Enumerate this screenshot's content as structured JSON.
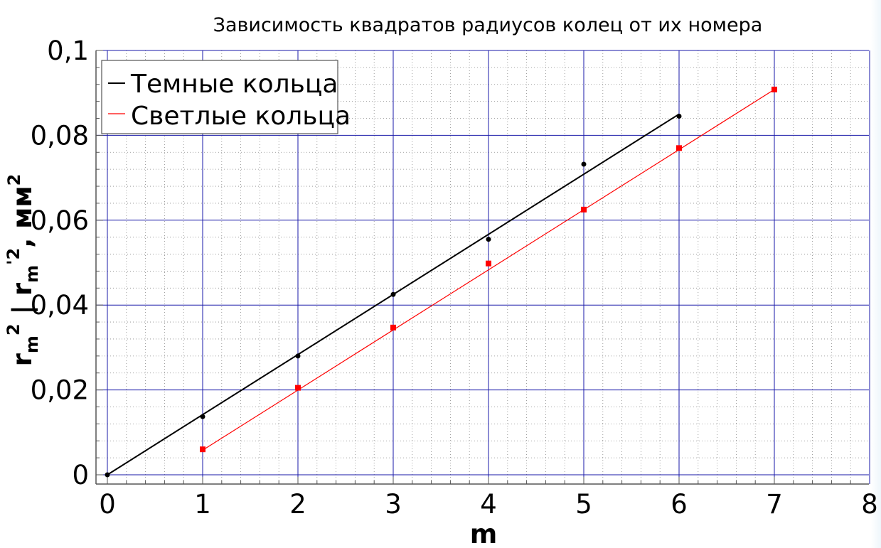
{
  "chart_data": {
    "type": "line",
    "title": "Зависимость квадратов радиусов колец от их номера",
    "xlabel": "m",
    "ylabel": {
      "r1": "r",
      "r1_sub": "m",
      "r1_sup": "2",
      "sep": " | ",
      "r2": "r",
      "r2_sub": "m",
      "r2_sup": "'2",
      "unit": ", мм",
      "unit_sup": "2"
    },
    "xlim": [
      0,
      8
    ],
    "ylim": [
      0,
      0.1
    ],
    "x_ticks": [
      {
        "value": 0,
        "label": "0"
      },
      {
        "value": 1,
        "label": "1"
      },
      {
        "value": 2,
        "label": "2"
      },
      {
        "value": 3,
        "label": "3"
      },
      {
        "value": 4,
        "label": "4"
      },
      {
        "value": 5,
        "label": "5"
      },
      {
        "value": 6,
        "label": "6"
      },
      {
        "value": 7,
        "label": "7"
      },
      {
        "value": 8,
        "label": "8"
      }
    ],
    "y_ticks": [
      {
        "value": 0,
        "label": "0"
      },
      {
        "value": 0.02,
        "label": "0,02"
      },
      {
        "value": 0.04,
        "label": "0,04"
      },
      {
        "value": 0.06,
        "label": "0,06"
      },
      {
        "value": 0.08,
        "label": "0,08"
      },
      {
        "value": 0.1,
        "label": "0,1"
      }
    ],
    "grid": true,
    "legend_position": "top-left",
    "series": [
      {
        "name": "Темные кольца",
        "color": "#000000",
        "marker": "circle",
        "points": [
          {
            "x": 0,
            "y": 0
          },
          {
            "x": 1,
            "y": 0.0137
          },
          {
            "x": 2,
            "y": 0.028
          },
          {
            "x": 3,
            "y": 0.0425
          },
          {
            "x": 4,
            "y": 0.0555
          },
          {
            "x": 5,
            "y": 0.0732
          },
          {
            "x": 6,
            "y": 0.0845
          }
        ],
        "fit": [
          {
            "x": 0,
            "y": 0
          },
          {
            "x": 6,
            "y": 0.085
          }
        ]
      },
      {
        "name": "Светлые кольца",
        "color": "#ff0000",
        "marker": "square",
        "points": [
          {
            "x": 1,
            "y": 0.006
          },
          {
            "x": 2,
            "y": 0.0205
          },
          {
            "x": 3,
            "y": 0.0347
          },
          {
            "x": 4,
            "y": 0.0498
          },
          {
            "x": 5,
            "y": 0.0625
          },
          {
            "x": 6,
            "y": 0.077
          },
          {
            "x": 7,
            "y": 0.0908
          }
        ],
        "fit": [
          {
            "x": 1,
            "y": 0.0058
          },
          {
            "x": 7,
            "y": 0.0908
          }
        ]
      }
    ]
  }
}
